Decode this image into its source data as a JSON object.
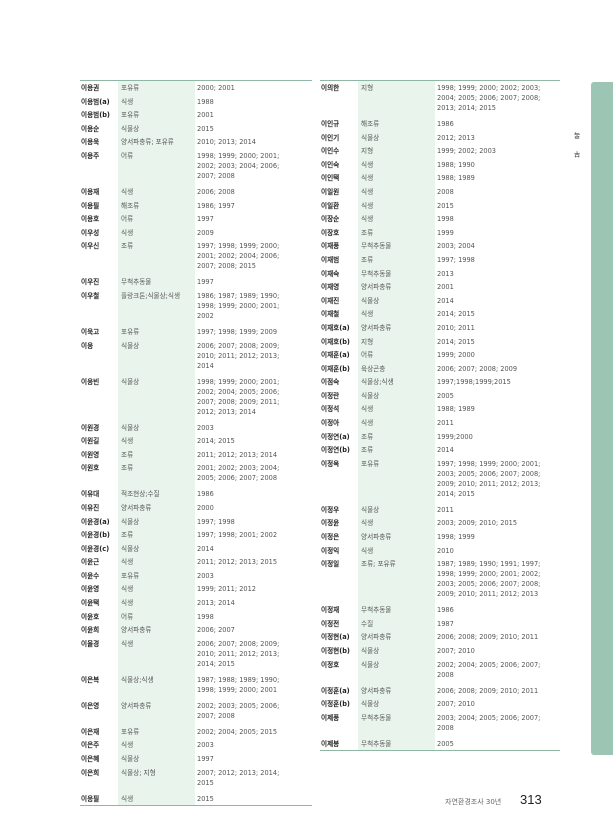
{
  "side_tab": {
    "label": "부록",
    "color": "#9dc5b4"
  },
  "footer": {
    "title": "자연환경조사 30년",
    "page_number": "313"
  },
  "left_rows": [
    [
      "이용권",
      "포유류",
      "2000; 2001"
    ],
    [
      "이용범(a)",
      "식생",
      "1988"
    ],
    [
      "이용범(b)",
      "포유류",
      "2001"
    ],
    [
      "이용순",
      "식물상",
      "2015"
    ],
    [
      "이용욱",
      "양서파충류; 포유류",
      "2010; 2013; 2014"
    ],
    [
      "이용주",
      "어류",
      "1998; 1999; 2000; 2001; 2002; 2003; 2004; 2006; 2007; 2008"
    ],
    [
      "이용재",
      "식생",
      "2006; 2008"
    ],
    [
      "이용필",
      "해조류",
      "1986; 1997"
    ],
    [
      "이용호",
      "어류",
      "1997"
    ],
    [
      "이우성",
      "식생",
      "2009"
    ],
    [
      "이우신",
      "조류",
      "1997; 1998; 1999; 2000; 2001; 2002; 2004; 2006; 2007; 2008; 2015"
    ],
    [
      "이우진",
      "무척추동물",
      "1997"
    ],
    [
      "이우철",
      "플랑크톤;식물상;식생",
      "1986; 1987; 1989; 1990; 1998; 1999; 2000; 2001; 2002"
    ],
    [
      "이욱고",
      "포유류",
      "1997; 1998; 1999; 2009"
    ],
    [
      "이웅",
      "식물상",
      "2006; 2007; 2008; 2009; 2010; 2011; 2012; 2013; 2014"
    ],
    [
      "이웅빈",
      "식물상",
      "1998; 1999; 2000; 2001; 2002; 2004; 2005; 2006; 2007; 2008; 2009; 2011; 2012; 2013; 2014"
    ],
    [
      "이원경",
      "식물상",
      "2003"
    ],
    [
      "이원길",
      "식생",
      "2014; 2015"
    ],
    [
      "이원영",
      "조류",
      "2011; 2012; 2013; 2014"
    ],
    [
      "이원호",
      "조류",
      "2001; 2002; 2003; 2004; 2005; 2006; 2007; 2008"
    ],
    [
      "이유대",
      "적조현상;수질",
      "1986"
    ],
    [
      "이유진",
      "양서파충류",
      "2000"
    ],
    [
      "이윤경(a)",
      "식물상",
      "1997; 1998"
    ],
    [
      "이윤경(b)",
      "조류",
      "1997; 1998; 2001; 2002"
    ],
    [
      "이윤경(c)",
      "식물상",
      "2014"
    ],
    [
      "이윤근",
      "식생",
      "2011; 2012; 2013; 2015"
    ],
    [
      "이윤수",
      "포유류",
      "2003"
    ],
    [
      "이윤영",
      "식생",
      "1999; 2011; 2012"
    ],
    [
      "이윤택",
      "식생",
      "2013; 2014"
    ],
    [
      "이윤호",
      "어류",
      "1998"
    ],
    [
      "이윤희",
      "양서파충류",
      "2006; 2007"
    ],
    [
      "이율경",
      "식생",
      "2006; 2007; 2008; 2009; 2010; 2011; 2012; 2013; 2014; 2015"
    ],
    [
      "이은복",
      "식물상;식생",
      "1987; 1988; 1989; 1990; 1998; 1999; 2000; 2001"
    ],
    [
      "이은영",
      "양서파충류",
      "2002; 2003; 2005; 2006; 2007; 2008"
    ],
    [
      "이은재",
      "포유류",
      "2002; 2004; 2005; 2015"
    ],
    [
      "이은주",
      "식생",
      "2003"
    ],
    [
      "이은혜",
      "식물상",
      "1997"
    ],
    [
      "이은희",
      "식물상; 지형",
      "2007; 2012; 2013; 2014; 2015"
    ],
    [
      "이응필",
      "식생",
      "2015"
    ]
  ],
  "right_rows": [
    [
      "이의한",
      "지형",
      "1998; 1999; 2000; 2002; 2003; 2004; 2005; 2006; 2007; 2008; 2013; 2014; 2015"
    ],
    [
      "이인규",
      "해조류",
      "1986"
    ],
    [
      "이인기",
      "식물상",
      "2012; 2013"
    ],
    [
      "이인수",
      "지형",
      "1999; 2002; 2003"
    ],
    [
      "이인숙",
      "식생",
      "1988; 1990"
    ],
    [
      "이인택",
      "식생",
      "1988; 1989"
    ],
    [
      "이일원",
      "식생",
      "2008"
    ],
    [
      "이일환",
      "식생",
      "2015"
    ],
    [
      "이장순",
      "식생",
      "1998"
    ],
    [
      "이장호",
      "조류",
      "1999"
    ],
    [
      "이재풍",
      "무척추동물",
      "2003; 2004"
    ],
    [
      "이재범",
      "조류",
      "1997; 1998"
    ],
    [
      "이재숙",
      "무척추동물",
      "2013"
    ],
    [
      "이재영",
      "양서파충류",
      "2001"
    ],
    [
      "이재진",
      "식물상",
      "2014"
    ],
    [
      "이재철",
      "식생",
      "2014; 2015"
    ],
    [
      "이재호(a)",
      "양서파충류",
      "2010; 2011"
    ],
    [
      "이재호(b)",
      "지형",
      "2014; 2015"
    ],
    [
      "이재훈(a)",
      "어류",
      "1999; 2000"
    ],
    [
      "이재훈(b)",
      "육상곤충",
      "2006; 2007; 2008; 2009"
    ],
    [
      "이점숙",
      "식물상;식생",
      "1997;1998;1999;2015"
    ],
    [
      "이정란",
      "식물상",
      "2005"
    ],
    [
      "이정석",
      "식생",
      "1988; 1989"
    ],
    [
      "이정아",
      "식생",
      "2011"
    ],
    [
      "이정연(a)",
      "조류",
      "1999;2000"
    ],
    [
      "이정연(b)",
      "조류",
      "2014"
    ],
    [
      "이정옥",
      "포유류",
      "1997; 1998; 1999; 2000; 2001; 2003; 2005; 2006; 2007; 2008; 2009; 2010; 2011; 2012; 2013; 2014; 2015"
    ],
    [
      "이정우",
      "식물상",
      "2011"
    ],
    [
      "이정윤",
      "식생",
      "2003; 2009; 2010; 2015"
    ],
    [
      "이정은",
      "양서파충류",
      "1998; 1999"
    ],
    [
      "이정익",
      "식생",
      "2010"
    ],
    [
      "이정일",
      "조류; 포유류",
      "1987; 1989; 1990; 1991; 1997; 1998; 1999; 2000; 2001; 2002; 2003; 2005; 2006; 2007; 2008; 2009; 2010; 2011; 2012; 2013"
    ],
    [
      "이정재",
      "무척추동물",
      "1986"
    ],
    [
      "이정전",
      "수질",
      "1987"
    ],
    [
      "이정현(a)",
      "양서파충류",
      "2006; 2008; 2009; 2010; 2011"
    ],
    [
      "이정현(b)",
      "식물상",
      "2007; 2010"
    ],
    [
      "이정호",
      "식물상",
      "2002; 2004; 2005; 2006; 2007; 2008"
    ],
    [
      "이정훈(a)",
      "양서파충류",
      "2006; 2008; 2009; 2010; 2011"
    ],
    [
      "이정훈(b)",
      "식물상",
      "2007; 2010"
    ],
    [
      "이제풍",
      "무척추동물",
      "2003; 2004; 2005; 2006; 2007; 2008"
    ],
    [
      "이제봉",
      "무척추동물",
      "2005"
    ]
  ]
}
